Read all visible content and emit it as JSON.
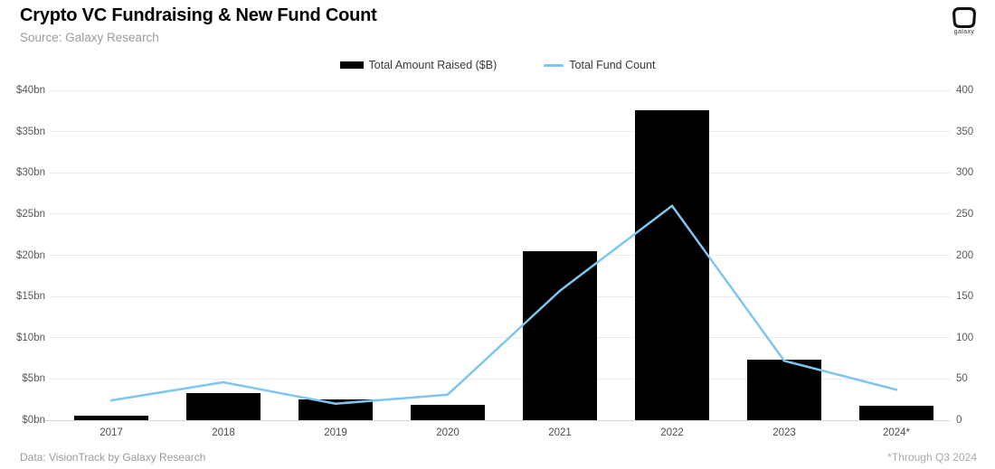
{
  "header": {
    "title": "Crypto VC Fundraising & New Fund Count",
    "subtitle": "Source: Galaxy Research",
    "logo_label": "galaxy"
  },
  "legend": [
    {
      "label": "Total Amount Raised ($B)",
      "marker": "bar-swatch",
      "color": "#000000"
    },
    {
      "label": "Total Fund Count",
      "marker": "line-swatch",
      "color": "#7ec6ef"
    }
  ],
  "chart_data": {
    "type": "bar",
    "subtype": "bar+line dual-axis",
    "title": "Crypto VC Fundraising & New Fund Count",
    "categories": [
      "2017",
      "2018",
      "2019",
      "2020",
      "2021",
      "2022",
      "2023",
      "2024*"
    ],
    "series": [
      {
        "name": "Total Amount Raised ($B)",
        "type": "bar",
        "axis": "left",
        "color": "#000000",
        "values": [
          0.5,
          3.3,
          2.5,
          1.9,
          20.5,
          37.6,
          7.3,
          1.8
        ]
      },
      {
        "name": "Total Fund Count",
        "type": "line",
        "axis": "right",
        "color": "#7ec6ef",
        "values": [
          24,
          46,
          20,
          31,
          157,
          260,
          72,
          37
        ]
      }
    ],
    "left_axis": {
      "ticks": [
        "$0bn",
        "$5bn",
        "$10bn",
        "$15bn",
        "$20bn",
        "$25bn",
        "$30bn",
        "$35bn",
        "$40bn"
      ],
      "min": 0,
      "max": 40
    },
    "right_axis": {
      "ticks": [
        "0",
        "50",
        "100",
        "150",
        "200",
        "250",
        "300",
        "350",
        "400"
      ],
      "min": 0,
      "max": 400
    },
    "grid": true,
    "legend_position": "top-center"
  },
  "footer": {
    "left": "Data: VisionTrack by Galaxy Research",
    "right": "*Through Q3 2024"
  }
}
